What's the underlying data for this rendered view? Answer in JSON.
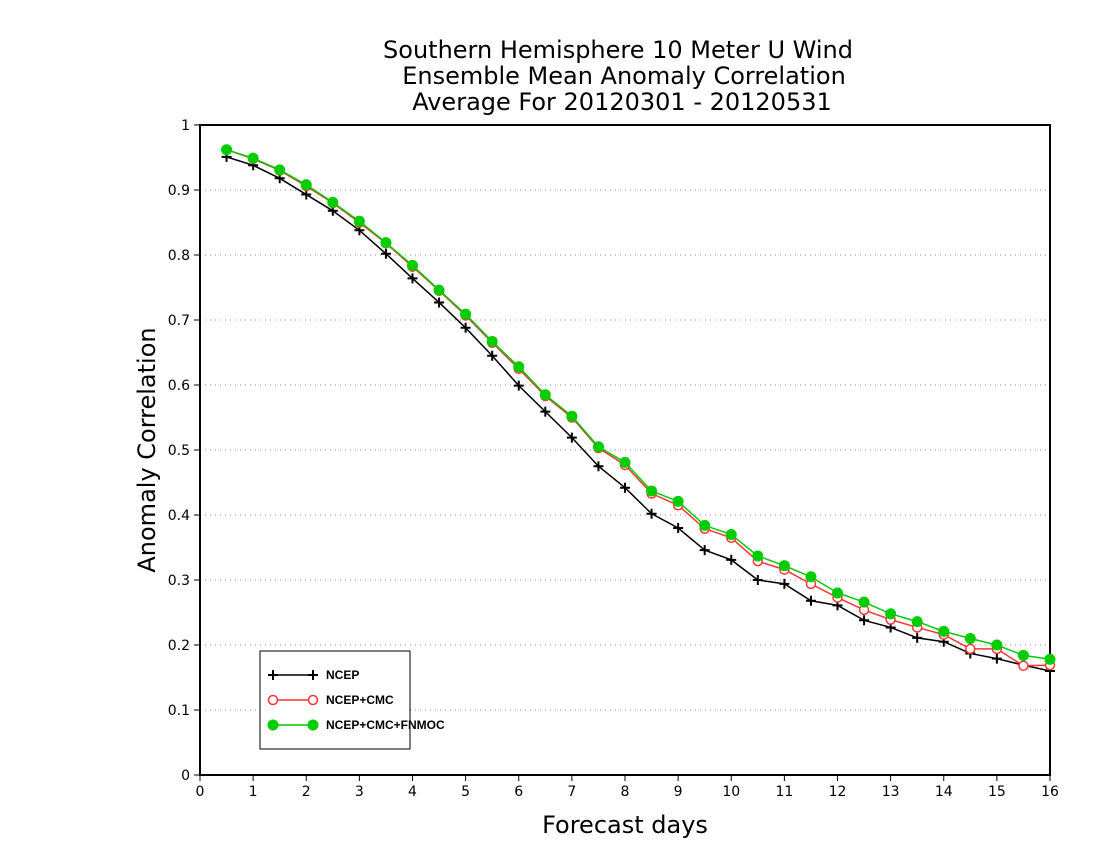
{
  "chart_data": {
    "type": "line",
    "title": [
      "Southern Hemisphere 10 Meter U Wind",
      "Ensemble Mean Anomaly Correlation",
      "Average For 20120301 - 20120531"
    ],
    "xlabel": "Forecast days",
    "ylabel": "Anomaly Correlation",
    "xlim": [
      0,
      16
    ],
    "ylim": [
      0,
      1
    ],
    "xticks": [
      0,
      1,
      2,
      3,
      4,
      5,
      6,
      7,
      8,
      9,
      10,
      11,
      12,
      13,
      14,
      15,
      16
    ],
    "yticks": [
      0,
      0.1,
      0.2,
      0.3,
      0.4,
      0.5,
      0.6,
      0.7,
      0.8,
      0.9,
      1
    ],
    "grid": "horizontal dotted",
    "legend_position": "bottom-left",
    "x": [
      0.5,
      1,
      1.5,
      2,
      2.5,
      3,
      3.5,
      4,
      4.5,
      5,
      5.5,
      6,
      6.5,
      7,
      7.5,
      8,
      8.5,
      9,
      9.5,
      10,
      10.5,
      11,
      11.5,
      12,
      12.5,
      13,
      13.5,
      14,
      14.5,
      15,
      15.5,
      16
    ],
    "series": [
      {
        "name": "NCEP",
        "color": "#000000",
        "marker": "plus",
        "values": [
          0.951,
          0.938,
          0.918,
          0.893,
          0.868,
          0.838,
          0.802,
          0.764,
          0.727,
          0.688,
          0.645,
          0.599,
          0.559,
          0.519,
          0.475,
          0.442,
          0.402,
          0.38,
          0.346,
          0.331,
          0.3,
          0.294,
          0.268,
          0.261,
          0.238,
          0.227,
          0.211,
          0.205,
          0.187,
          0.179,
          0.169,
          0.16
        ]
      },
      {
        "name": "NCEP+CMC",
        "color": "#ff3333",
        "marker": "open-circle",
        "values": [
          0.962,
          0.948,
          0.93,
          0.906,
          0.88,
          0.85,
          0.818,
          0.782,
          0.745,
          0.707,
          0.665,
          0.625,
          0.583,
          0.55,
          0.503,
          0.477,
          0.433,
          0.415,
          0.379,
          0.365,
          0.329,
          0.316,
          0.294,
          0.273,
          0.254,
          0.239,
          0.227,
          0.216,
          0.194,
          0.194,
          0.168,
          0.169
        ]
      },
      {
        "name": "NCEP+CMC+FNMOC",
        "color": "#00cc00",
        "marker": "filled-circle",
        "values": [
          0.962,
          0.949,
          0.931,
          0.908,
          0.881,
          0.852,
          0.819,
          0.784,
          0.746,
          0.709,
          0.667,
          0.628,
          0.585,
          0.552,
          0.505,
          0.481,
          0.437,
          0.421,
          0.384,
          0.37,
          0.337,
          0.322,
          0.305,
          0.28,
          0.266,
          0.248,
          0.236,
          0.221,
          0.21,
          0.2,
          0.184,
          0.178
        ]
      }
    ]
  }
}
